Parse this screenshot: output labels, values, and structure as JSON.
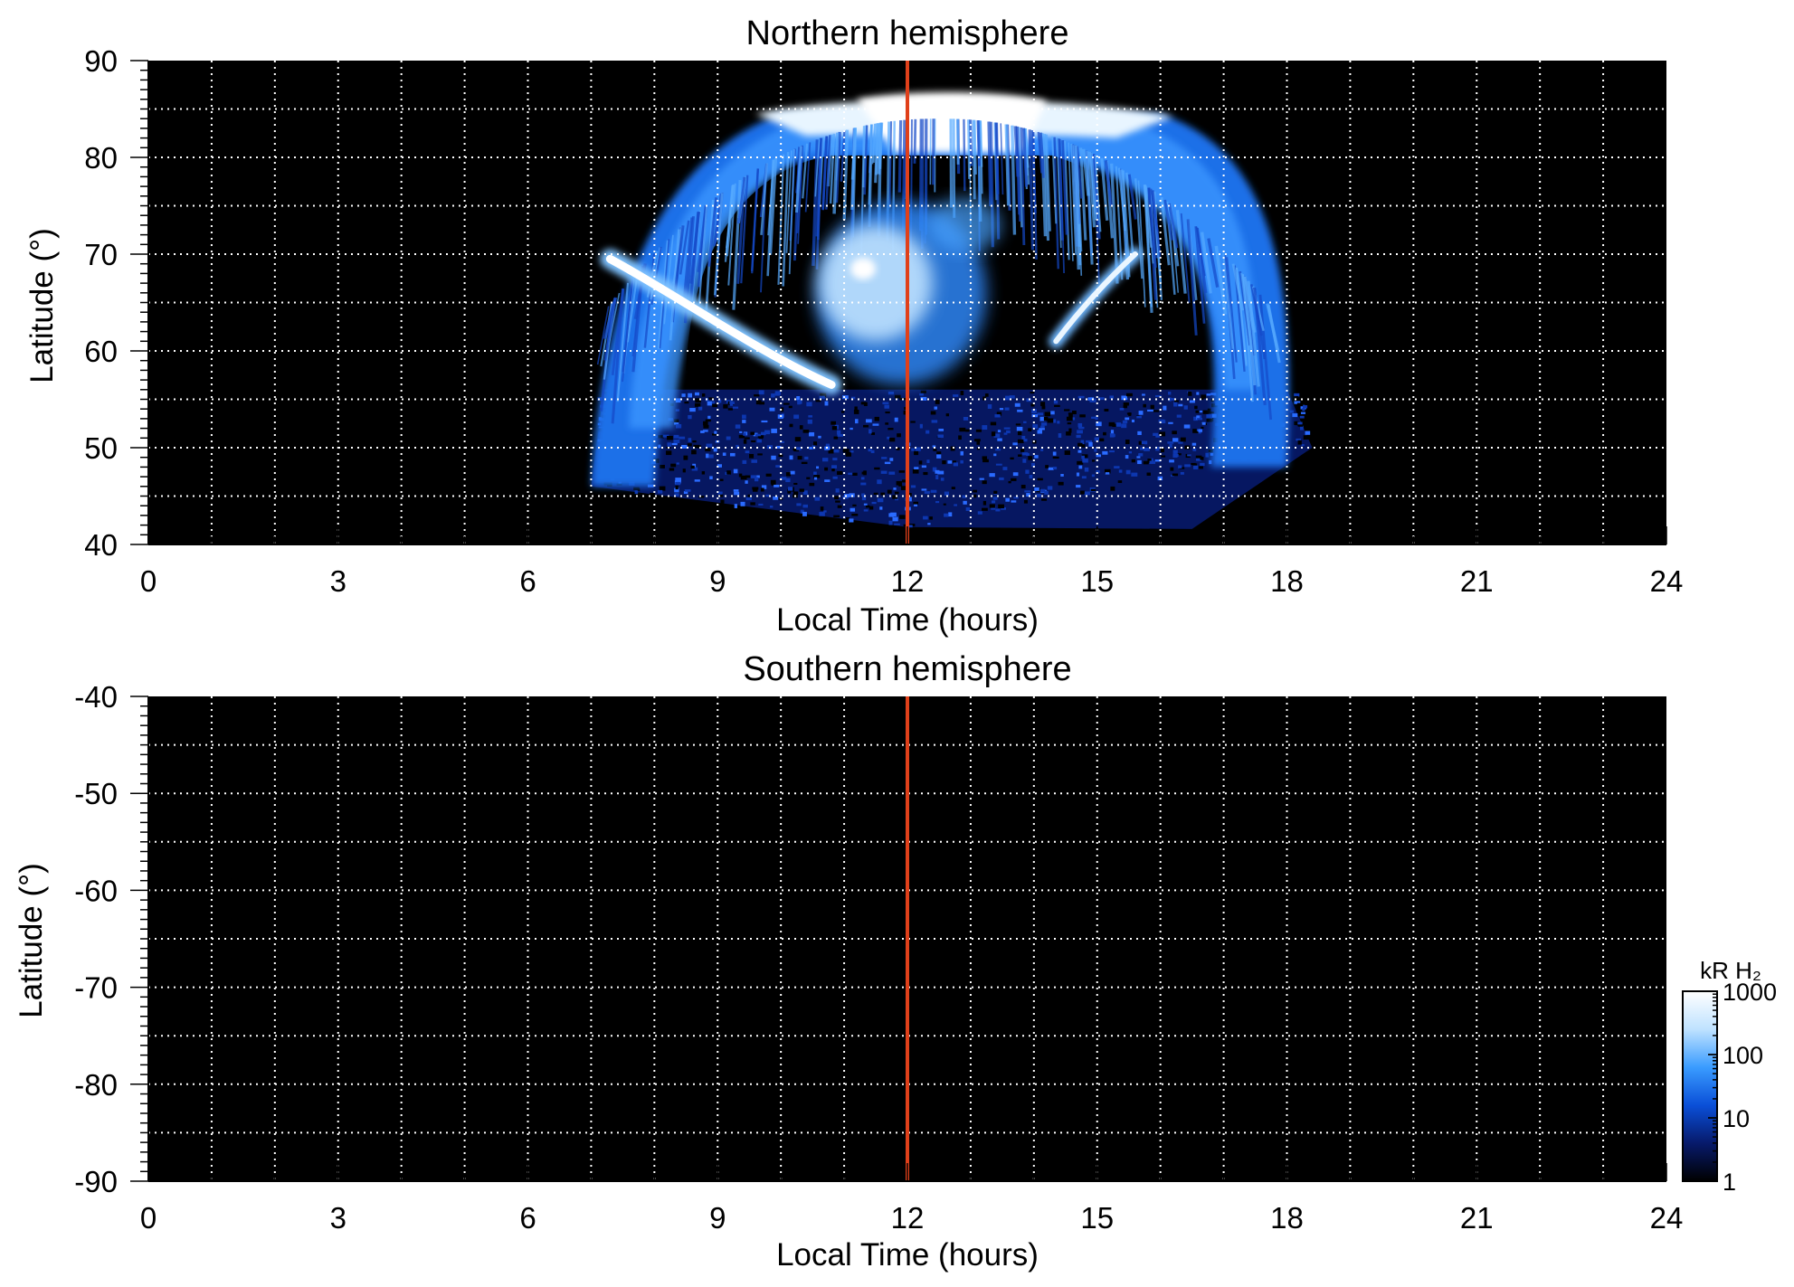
{
  "chart_data": [
    {
      "type": "heatmap",
      "title": "Northern hemisphere",
      "xlabel": "Local Time (hours)",
      "ylabel": "Latitude (°)",
      "xlim": [
        0,
        24
      ],
      "ylim": [
        40,
        90
      ],
      "xticks": [
        0,
        3,
        6,
        9,
        12,
        15,
        18,
        21,
        24
      ],
      "xtick_labels": [
        "0",
        "3",
        "6",
        "9",
        "12",
        "15",
        "18",
        "21",
        "24"
      ],
      "yticks": [
        40,
        50,
        60,
        70,
        80,
        90
      ],
      "ytick_labels": [
        "40",
        "50",
        "60",
        "70",
        "80",
        "90"
      ],
      "grid": true,
      "background": "#000000",
      "marker_line": {
        "x": 12,
        "color": "#e0401a"
      },
      "emission_regions": [
        {
          "feature": "auroral-band",
          "lt_start": 7.0,
          "lt_end": 18.0,
          "lat_outer": 46,
          "lat_peak": 84,
          "intensity": "medium-high"
        },
        {
          "feature": "polar-cap-bright",
          "lt_start": 9.5,
          "lt_end": 16.0,
          "lat_low": 80,
          "lat_high": 87,
          "intensity": "very-high"
        },
        {
          "feature": "dawn-arc",
          "lt_start": 7.3,
          "lt_end": 10.8,
          "lat_start": 69,
          "lat_end": 56,
          "intensity": "very-high"
        },
        {
          "feature": "dusk-arc",
          "lt_start": 14.3,
          "lt_end": 15.6,
          "lat_start": 61,
          "lat_end": 70,
          "intensity": "high"
        },
        {
          "feature": "noon-patch",
          "lt_start": 10.6,
          "lt_end": 13.3,
          "lat_low": 57,
          "lat_high": 76,
          "intensity": "high"
        },
        {
          "feature": "diffuse-low-latitude",
          "lt_start": 7.0,
          "lt_end": 18.4,
          "lat_low": 42,
          "lat_high": 55,
          "intensity": "low"
        }
      ]
    },
    {
      "type": "heatmap",
      "title": "Southern hemisphere",
      "xlabel": "Local Time (hours)",
      "ylabel": "Latitude (°)",
      "xlim": [
        0,
        24
      ],
      "ylim": [
        -90,
        -40
      ],
      "xticks": [
        0,
        3,
        6,
        9,
        12,
        15,
        18,
        21,
        24
      ],
      "xtick_labels": [
        "0",
        "3",
        "6",
        "9",
        "12",
        "15",
        "18",
        "21",
        "24"
      ],
      "yticks": [
        -40,
        -50,
        -60,
        -70,
        -80,
        -90
      ],
      "ytick_labels": [
        "-40",
        "-50",
        "-60",
        "-70",
        "-80",
        "-90"
      ],
      "grid": true,
      "background": "#000000",
      "marker_line": {
        "x": 12,
        "color": "#e0401a"
      },
      "emission_regions": []
    }
  ],
  "colorbar": {
    "label": "kR H₂",
    "scale": "log",
    "range": [
      1,
      1000
    ],
    "tick_labels": [
      "1",
      "10",
      "100",
      "1000"
    ],
    "colors": [
      "#000000",
      "#071a6b",
      "#0a4fd8",
      "#3a9cff",
      "#bfe2ff",
      "#ffffff"
    ]
  }
}
